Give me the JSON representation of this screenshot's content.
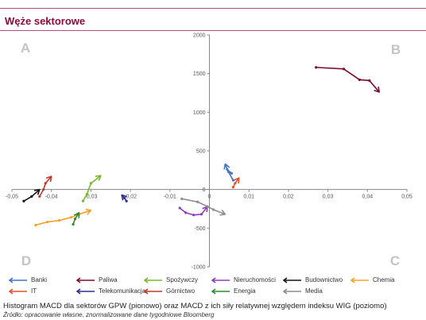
{
  "header": {
    "title": "Węże sektorowe"
  },
  "chart_data": {
    "type": "line",
    "title": "Węże sektorowe",
    "xlabel": "",
    "ylabel": "",
    "xlim": [
      -0.05,
      0.05
    ],
    "ylim": [
      -1000,
      2000
    ],
    "xticks": [
      "-0,05",
      "-0,04",
      "-0,03",
      "-0,02",
      "-0,01",
      "0",
      "0,01",
      "0,02",
      "0,03",
      "0,04",
      "0,05"
    ],
    "yticks": [
      "2000",
      "1500",
      "1000",
      "500",
      "0",
      "-500",
      "-1000"
    ],
    "quadrants": {
      "A": "A",
      "B": "B",
      "C": "C",
      "D": "D"
    },
    "grid": false,
    "legend_position": "bottom",
    "series": [
      {
        "name": "Banki",
        "color": "#4472c4",
        "points": [
          [
            0.006,
            120
          ],
          [
            0.0048,
            230
          ],
          [
            0.0056,
            210
          ],
          [
            0.0045,
            260
          ],
          [
            0.004,
            330
          ]
        ]
      },
      {
        "name": "Paliwa",
        "color": "#7b0c2e",
        "points": [
          [
            0.027,
            1580
          ],
          [
            0.034,
            1560
          ],
          [
            0.038,
            1420
          ],
          [
            0.0405,
            1410
          ],
          [
            0.043,
            1260
          ]
        ]
      },
      {
        "name": "Spożywczy",
        "color": "#76b82a",
        "points": [
          [
            -0.032,
            -150
          ],
          [
            -0.031,
            -60
          ],
          [
            -0.03,
            80
          ],
          [
            -0.0275,
            180
          ]
        ]
      },
      {
        "name": "Nieruchomości",
        "color": "#8b3fb5",
        "points": [
          [
            -0.0075,
            -240
          ],
          [
            -0.006,
            -300
          ],
          [
            -0.004,
            -330
          ],
          [
            -0.002,
            -320
          ],
          [
            -0.0005,
            -220
          ]
        ]
      },
      {
        "name": "Budownictwo",
        "color": "#111111",
        "points": [
          [
            -0.047,
            -150
          ],
          [
            -0.045,
            -90
          ],
          [
            -0.043,
            0
          ]
        ]
      },
      {
        "name": "Chemia",
        "color": "#f5a22a",
        "points": [
          [
            -0.044,
            -460
          ],
          [
            -0.041,
            -420
          ],
          [
            -0.038,
            -400
          ],
          [
            -0.035,
            -360
          ],
          [
            -0.033,
            -320
          ],
          [
            -0.03,
            -270
          ]
        ]
      },
      {
        "name": "IT",
        "color": "#e0522b",
        "points": [
          [
            0.006,
            30
          ],
          [
            0.0065,
            80
          ],
          [
            0.0075,
            150
          ]
        ]
      },
      {
        "name": "Telekomunikacja",
        "color": "#2e2e8c",
        "points": [
          [
            -0.021,
            -150
          ],
          [
            -0.0215,
            -110
          ],
          [
            -0.0222,
            -70
          ]
        ]
      },
      {
        "name": "Górnictwo",
        "color": "#c0392b",
        "points": [
          [
            -0.043,
            -90
          ],
          [
            -0.042,
            0
          ],
          [
            -0.0415,
            80
          ],
          [
            -0.04,
            170
          ]
        ]
      },
      {
        "name": "Energia",
        "color": "#2e8b2e",
        "points": [
          [
            -0.0345,
            -450
          ],
          [
            -0.034,
            -380
          ],
          [
            -0.033,
            -300
          ]
        ]
      },
      {
        "name": "Media",
        "color": "#8c8c8c",
        "points": [
          [
            -0.007,
            -120
          ],
          [
            -0.003,
            -160
          ],
          [
            -0.0005,
            -220
          ],
          [
            0.001,
            -260
          ],
          [
            0.004,
            -320
          ]
        ]
      }
    ]
  },
  "legend": [
    {
      "label": "Banki",
      "color": "#4472c4"
    },
    {
      "label": "Paliwa",
      "color": "#7b0c2e"
    },
    {
      "label": "Spożywczy",
      "color": "#76b82a"
    },
    {
      "label": "Nieruchomości",
      "color": "#8b3fb5"
    },
    {
      "label": "Budownictwo",
      "color": "#111111"
    },
    {
      "label": "Chemia",
      "color": "#f5a22a"
    },
    {
      "label": "IT",
      "color": "#e0522b"
    },
    {
      "label": "Telekomunikacja",
      "color": "#2e2e8c"
    },
    {
      "label": "Górnictwo",
      "color": "#c0392b"
    },
    {
      "label": "Energia",
      "color": "#2e8b2e"
    },
    {
      "label": "Media",
      "color": "#8c8c8c"
    }
  ],
  "caption": "Histogram MACD dla sektorów GPW (pionowo) oraz MACD z ich siły relatywnej względem indeksu WIG (poziomo)",
  "source": "Źródło: opracowanie własne, znormalizowane dane tygodniowe Bloomberg"
}
